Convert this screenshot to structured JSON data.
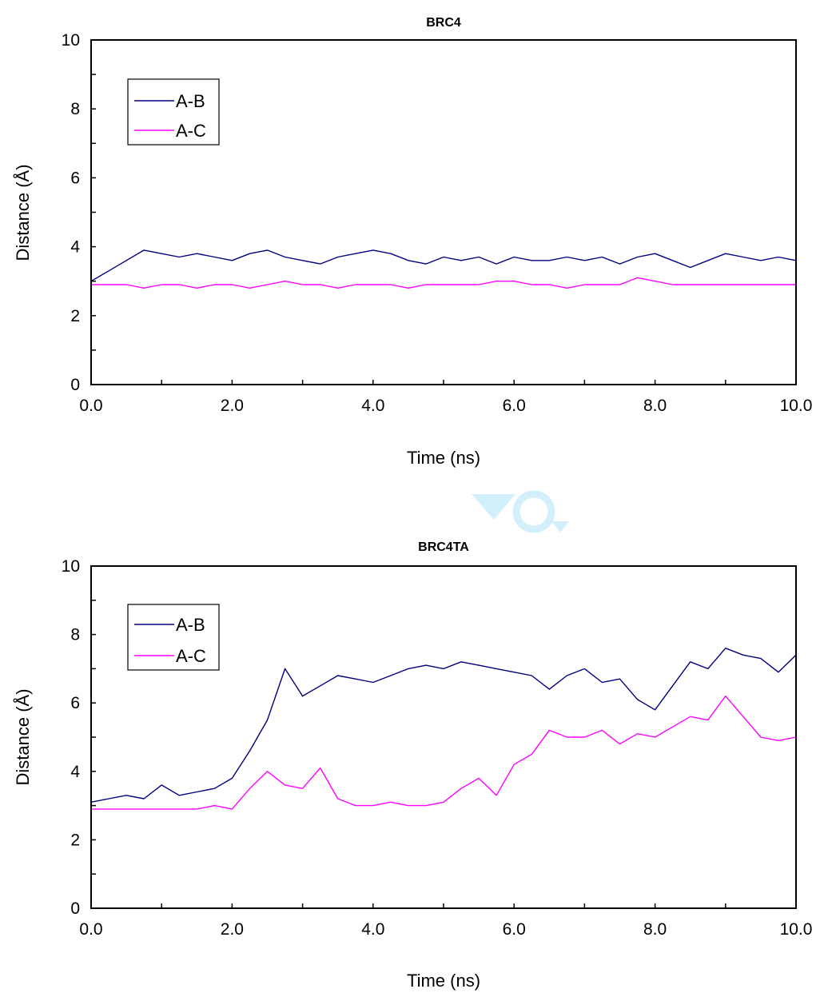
{
  "chart_data": [
    {
      "type": "line",
      "title": "BRC4",
      "xlabel": "Time (ns)",
      "ylabel": "Distance (Å)",
      "xlim": [
        0,
        10
      ],
      "ylim": [
        0,
        10
      ],
      "xticks": [
        "0.0",
        "2.0",
        "4.0",
        "6.0",
        "8.0",
        "10.0"
      ],
      "yticks": [
        "0",
        "2",
        "4",
        "6",
        "8",
        "10"
      ],
      "grid": false,
      "legend_position": "top-left",
      "series": [
        {
          "name": "A-B",
          "color": "#000080",
          "x": [
            0,
            0.25,
            0.5,
            0.75,
            1,
            1.25,
            1.5,
            1.75,
            2,
            2.25,
            2.5,
            2.75,
            3,
            3.25,
            3.5,
            3.75,
            4,
            4.25,
            4.5,
            4.75,
            5,
            5.25,
            5.5,
            5.75,
            6,
            6.25,
            6.5,
            6.75,
            7,
            7.25,
            7.5,
            7.75,
            8,
            8.25,
            8.5,
            8.75,
            9,
            9.25,
            9.5,
            9.75,
            10
          ],
          "y": [
            3.0,
            3.3,
            3.6,
            3.9,
            3.8,
            3.7,
            3.8,
            3.7,
            3.6,
            3.8,
            3.9,
            3.7,
            3.6,
            3.5,
            3.7,
            3.8,
            3.9,
            3.8,
            3.6,
            3.5,
            3.7,
            3.6,
            3.7,
            3.5,
            3.7,
            3.6,
            3.6,
            3.7,
            3.6,
            3.7,
            3.5,
            3.7,
            3.8,
            3.6,
            3.4,
            3.6,
            3.8,
            3.7,
            3.6,
            3.7,
            3.6
          ]
        },
        {
          "name": "A-C",
          "color": "#ff00ff",
          "x": [
            0,
            0.25,
            0.5,
            0.75,
            1,
            1.25,
            1.5,
            1.75,
            2,
            2.25,
            2.5,
            2.75,
            3,
            3.25,
            3.5,
            3.75,
            4,
            4.25,
            4.5,
            4.75,
            5,
            5.25,
            5.5,
            5.75,
            6,
            6.25,
            6.5,
            6.75,
            7,
            7.25,
            7.5,
            7.75,
            8,
            8.25,
            8.5,
            8.75,
            9,
            9.25,
            9.5,
            9.75,
            10
          ],
          "y": [
            2.9,
            2.9,
            2.9,
            2.8,
            2.9,
            2.9,
            2.8,
            2.9,
            2.9,
            2.8,
            2.9,
            3.0,
            2.9,
            2.9,
            2.8,
            2.9,
            2.9,
            2.9,
            2.8,
            2.9,
            2.9,
            2.9,
            2.9,
            3.0,
            3.0,
            2.9,
            2.9,
            2.8,
            2.9,
            2.9,
            2.9,
            3.1,
            3.0,
            2.9,
            2.9,
            2.9,
            2.9,
            2.9,
            2.9,
            2.9,
            2.9
          ]
        }
      ]
    },
    {
      "type": "line",
      "title": "BRC4TA",
      "xlabel": "Time (ns)",
      "ylabel": "Distance (Å)",
      "xlim": [
        0,
        10
      ],
      "ylim": [
        0,
        10
      ],
      "xticks": [
        "0.0",
        "2.0",
        "4.0",
        "6.0",
        "8.0",
        "10.0"
      ],
      "yticks": [
        "0",
        "2",
        "4",
        "6",
        "8",
        "10"
      ],
      "grid": false,
      "legend_position": "top-left",
      "series": [
        {
          "name": "A-B",
          "color": "#000080",
          "x": [
            0,
            0.25,
            0.5,
            0.75,
            1,
            1.25,
            1.5,
            1.75,
            2,
            2.25,
            2.5,
            2.75,
            3,
            3.25,
            3.5,
            3.75,
            4,
            4.25,
            4.5,
            4.75,
            5,
            5.25,
            5.5,
            5.75,
            6,
            6.25,
            6.5,
            6.75,
            7,
            7.25,
            7.5,
            7.75,
            8,
            8.25,
            8.5,
            8.75,
            9,
            9.25,
            9.5,
            9.75,
            10
          ],
          "y": [
            3.1,
            3.2,
            3.3,
            3.2,
            3.6,
            3.3,
            3.4,
            3.5,
            3.8,
            4.6,
            5.5,
            7.0,
            6.2,
            6.5,
            6.8,
            6.7,
            6.6,
            6.8,
            7.0,
            7.1,
            7.0,
            7.2,
            7.1,
            7.0,
            6.9,
            6.8,
            6.4,
            6.8,
            7.0,
            6.6,
            6.7,
            6.1,
            5.8,
            6.5,
            7.2,
            7.0,
            7.6,
            7.4,
            7.3,
            6.9,
            7.4
          ]
        },
        {
          "name": "A-C",
          "color": "#ff00ff",
          "x": [
            0,
            0.25,
            0.5,
            0.75,
            1,
            1.25,
            1.5,
            1.75,
            2,
            2.25,
            2.5,
            2.75,
            3,
            3.25,
            3.5,
            3.75,
            4,
            4.25,
            4.5,
            4.75,
            5,
            5.25,
            5.5,
            5.75,
            6,
            6.25,
            6.5,
            6.75,
            7,
            7.25,
            7.5,
            7.75,
            8,
            8.25,
            8.5,
            8.75,
            9,
            9.25,
            9.5,
            9.75,
            10
          ],
          "y": [
            2.9,
            2.9,
            2.9,
            2.9,
            2.9,
            2.9,
            2.9,
            3.0,
            2.9,
            3.5,
            4.0,
            3.6,
            3.5,
            4.1,
            3.2,
            3.0,
            3.0,
            3.1,
            3.0,
            3.0,
            3.1,
            3.5,
            3.8,
            3.3,
            4.2,
            4.5,
            5.2,
            5.0,
            5.0,
            5.2,
            4.8,
            5.1,
            5.0,
            5.3,
            5.6,
            5.5,
            6.2,
            5.6,
            5.0,
            4.9,
            5.0
          ]
        }
      ]
    }
  ]
}
